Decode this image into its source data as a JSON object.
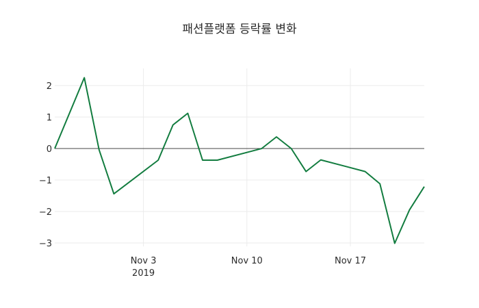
{
  "chart_data": {
    "type": "line",
    "title": "패션플랫폼 등락률 변화",
    "xlabel": "",
    "ylabel": "",
    "x": [
      "2019-10-28",
      "2019-10-30",
      "2019-10-31",
      "2019-11-01",
      "2019-11-04",
      "2019-11-05",
      "2019-11-06",
      "2019-11-07",
      "2019-11-08",
      "2019-11-11",
      "2019-11-12",
      "2019-11-13",
      "2019-11-14",
      "2019-11-15",
      "2019-11-18",
      "2019-11-19",
      "2019-11-20",
      "2019-11-21",
      "2019-11-22"
    ],
    "series": [
      {
        "name": "등락률",
        "color": "#127c3f",
        "values": [
          0,
          2.25,
          -0.04,
          -1.44,
          -0.37,
          0.75,
          1.12,
          -0.37,
          -0.37,
          0,
          0.37,
          0,
          -0.73,
          -0.36,
          -0.73,
          -1.12,
          -3.01,
          -1.95,
          -1.21
        ]
      }
    ],
    "ylim": [
      -3.3,
      2.5
    ],
    "xlim": [
      "2019-10-28",
      "2019-11-22"
    ],
    "y_ticks": [
      2,
      1,
      0,
      -1,
      -2,
      -3
    ],
    "y_tick_labels": [
      "2",
      "1",
      "0",
      "−1",
      "−2",
      "−3"
    ],
    "x_ticks": [
      {
        "date": "2019-11-03",
        "label": "Nov 3",
        "sublabel": "2019"
      },
      {
        "date": "2019-11-10",
        "label": "Nov 10",
        "sublabel": ""
      },
      {
        "date": "2019-11-17",
        "label": "Nov 17",
        "sublabel": ""
      }
    ],
    "grid": true,
    "legend": false
  }
}
